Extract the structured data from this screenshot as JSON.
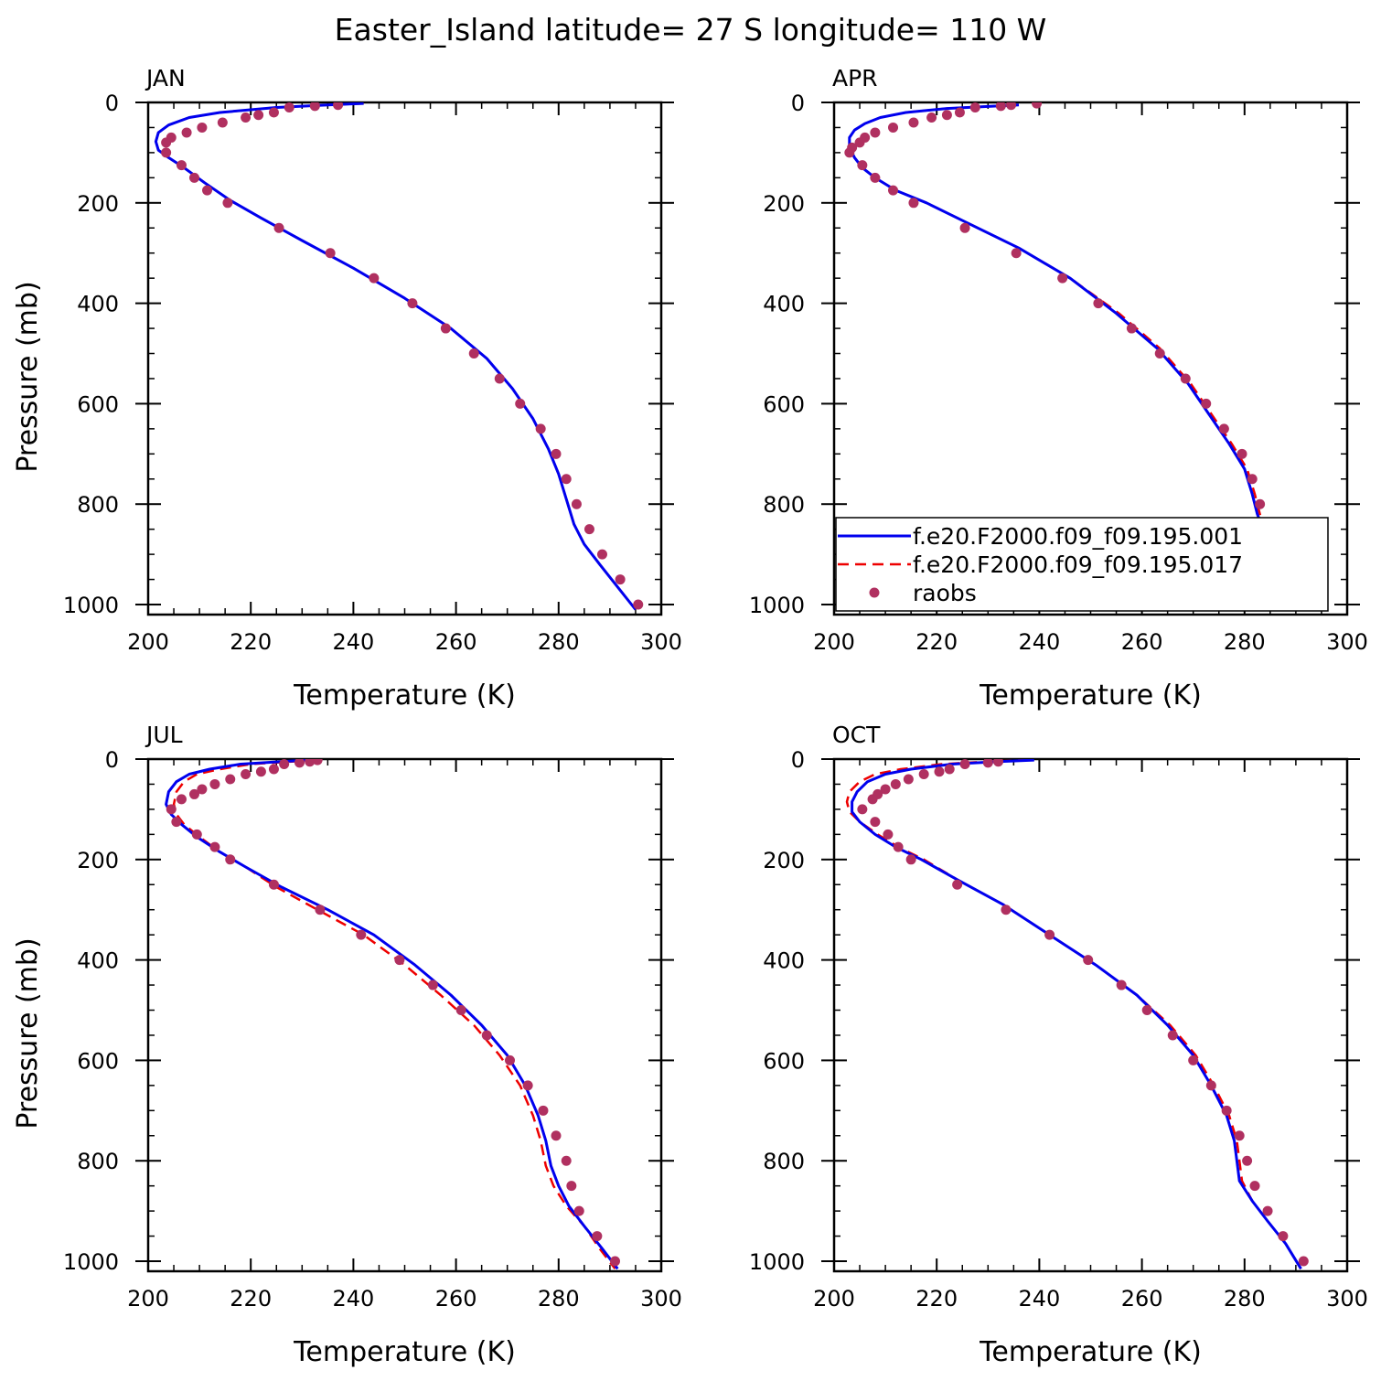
{
  "title": "Easter_Island  latitude= 27 S longitude= 110 W",
  "colors": {
    "series_001": "#0000ee",
    "series_017": "#ee0000",
    "raobs": "#b03060"
  },
  "legend": {
    "placement": "lower-left of APR panel",
    "entries": [
      {
        "label": "f.e20.F2000.f09_f09.195.001",
        "style": "solid-line",
        "color": "#0000ee"
      },
      {
        "label": "f.e20.F2000.f09_f09.195.017",
        "style": "dashed-line",
        "color": "#ee0000"
      },
      {
        "label": "raobs",
        "style": "marker",
        "color": "#b03060"
      }
    ]
  },
  "chart_data": [
    {
      "type": "line",
      "panel": "JAN",
      "xlabel": "Temperature (K)",
      "ylabel": "Pressure (mb)",
      "xlim": [
        200,
        300
      ],
      "ylim": [
        1020,
        0
      ],
      "xticks": [
        200,
        220,
        240,
        260,
        280,
        300
      ],
      "yticks": [
        0,
        200,
        400,
        600,
        800,
        1000
      ],
      "series": [
        {
          "name": "f.e20.F2000.f09_f09.195.001",
          "style": "solid",
          "x": [
            242,
            235,
            225,
            214,
            208,
            204,
            202,
            201.5,
            202,
            204,
            207,
            211,
            216,
            222,
            230,
            240,
            250,
            259,
            266,
            271,
            275,
            278,
            280,
            281.5,
            283,
            285,
            288,
            291.5,
            295
          ],
          "y": [
            2,
            5,
            10,
            20,
            30,
            45,
            60,
            78,
            95,
            110,
            130,
            160,
            195,
            230,
            275,
            330,
            390,
            450,
            510,
            570,
            630,
            690,
            740,
            790,
            840,
            880,
            920,
            965,
            1010
          ]
        },
        {
          "name": "f.e20.F2000.f09_f09.195.017",
          "style": "dashed",
          "x": [
            242,
            235,
            225,
            214,
            208,
            204,
            202,
            201.5,
            202,
            204,
            207,
            211,
            216,
            222,
            230,
            240,
            250,
            259,
            266,
            271,
            275,
            278,
            280,
            281.5,
            283,
            285,
            288,
            291.5,
            295
          ],
          "y": [
            2,
            5,
            10,
            20,
            30,
            45,
            60,
            78,
            95,
            110,
            130,
            160,
            195,
            230,
            275,
            330,
            390,
            450,
            510,
            570,
            630,
            690,
            740,
            790,
            840,
            880,
            920,
            965,
            1010
          ]
        },
        {
          "name": "raobs",
          "style": "marker",
          "x": [
            237,
            232.5,
            227.5,
            224.5,
            221.5,
            219,
            214.5,
            210.5,
            207.5,
            204.5,
            203.5,
            203.5,
            206.5,
            209,
            211.5,
            215.5,
            225.5,
            235.5,
            244,
            251.5,
            258,
            263.5,
            268.5,
            272.5,
            276.5,
            279.5,
            281.5,
            283.5,
            286,
            288.5,
            292,
            295.5
          ],
          "y": [
            5,
            7,
            10,
            20,
            25,
            30,
            40,
            50,
            60,
            70,
            80,
            100,
            125,
            150,
            175,
            200,
            250,
            300,
            350,
            400,
            450,
            500,
            550,
            600,
            650,
            700,
            750,
            800,
            850,
            900,
            950,
            1000
          ]
        }
      ]
    },
    {
      "type": "line",
      "panel": "APR",
      "xlabel": "Temperature (K)",
      "ylabel": "",
      "xlim": [
        200,
        300
      ],
      "ylim": [
        1020,
        0
      ],
      "xticks": [
        200,
        220,
        240,
        260,
        280,
        300
      ],
      "yticks": [
        0,
        200,
        400,
        600,
        800,
        1000
      ],
      "series": [
        {
          "name": "f.e20.F2000.f09_f09.195.001",
          "style": "solid",
          "x": [
            236,
            230,
            222,
            214,
            209,
            206,
            204,
            203,
            203,
            204,
            205.5,
            208,
            212,
            218,
            226,
            236,
            246,
            255,
            263,
            269,
            273,
            277,
            280,
            281.5,
            282.5,
            284,
            287,
            291,
            295
          ],
          "y": [
            5,
            8,
            12,
            20,
            30,
            42,
            55,
            70,
            90,
            110,
            130,
            150,
            175,
            200,
            240,
            290,
            350,
            420,
            490,
            560,
            620,
            680,
            730,
            780,
            820,
            860,
            910,
            960,
            1010
          ]
        },
        {
          "name": "f.e20.F2000.f09_f09.195.017",
          "style": "dashed",
          "x": [
            236,
            230,
            222,
            214,
            209,
            206,
            204,
            203,
            203,
            204,
            205.5,
            208,
            212,
            218,
            226,
            236,
            246,
            255.5,
            263.5,
            269.5,
            273.5,
            277.5,
            280.5,
            282,
            283,
            284.5,
            287.5,
            291,
            295
          ],
          "y": [
            5,
            8,
            12,
            20,
            30,
            42,
            55,
            70,
            90,
            110,
            130,
            150,
            175,
            200,
            240,
            290,
            350,
            420,
            490,
            560,
            620,
            680,
            730,
            780,
            820,
            860,
            910,
            960,
            1010
          ]
        },
        {
          "name": "raobs",
          "style": "marker",
          "x": [
            239.5,
            234.5,
            232.5,
            227.5,
            224.5,
            222,
            219,
            215.5,
            211.5,
            208,
            206,
            205,
            203.5,
            203,
            205.5,
            208,
            211.5,
            215.5,
            225.5,
            235.5,
            244.5,
            251.5,
            258,
            263.5,
            268.5,
            272.5,
            276,
            279.5,
            281.5,
            283,
            285,
            287.5,
            290.5,
            295
          ],
          "y": [
            2,
            5,
            7,
            10,
            20,
            25,
            30,
            40,
            50,
            60,
            70,
            80,
            90,
            100,
            125,
            150,
            175,
            200,
            250,
            300,
            350,
            400,
            450,
            500,
            550,
            600,
            650,
            700,
            750,
            800,
            850,
            900,
            950,
            1000
          ]
        }
      ]
    },
    {
      "type": "line",
      "panel": "JUL",
      "xlabel": "Temperature (K)",
      "ylabel": "Pressure (mb)",
      "xlim": [
        200,
        300
      ],
      "ylim": [
        1020,
        0
      ],
      "xticks": [
        200,
        220,
        240,
        260,
        280,
        300
      ],
      "yticks": [
        0,
        200,
        400,
        600,
        800,
        1000
      ],
      "series": [
        {
          "name": "f.e20.F2000.f09_f09.195.001",
          "style": "solid",
          "x": [
            231,
            226,
            218,
            212,
            208,
            205.5,
            204,
            203.5,
            204.5,
            206.5,
            209.5,
            214,
            219,
            226,
            235,
            244,
            252,
            259,
            265,
            270,
            273.5,
            276,
            277.5,
            278.5,
            280,
            282,
            285,
            288.5,
            291.5
          ],
          "y": [
            2,
            5,
            10,
            20,
            30,
            45,
            65,
            90,
            110,
            130,
            155,
            185,
            215,
            255,
            300,
            350,
            410,
            470,
            530,
            590,
            650,
            710,
            760,
            810,
            850,
            890,
            930,
            975,
            1015
          ]
        },
        {
          "name": "f.e20.F2000.f09_f09.195.017",
          "style": "dashed",
          "x": [
            233,
            228,
            220,
            214,
            209.5,
            207,
            205.5,
            205,
            205.5,
            207,
            210,
            214,
            219,
            225,
            233,
            242,
            250,
            257,
            263.5,
            268.5,
            272.5,
            275,
            276.5,
            277.5,
            279,
            281.5,
            285,
            288,
            291
          ],
          "y": [
            2,
            5,
            10,
            20,
            30,
            45,
            65,
            90,
            110,
            130,
            155,
            185,
            215,
            255,
            300,
            350,
            410,
            470,
            530,
            590,
            650,
            710,
            760,
            810,
            850,
            890,
            930,
            975,
            1015
          ]
        },
        {
          "name": "raobs",
          "style": "marker",
          "x": [
            233,
            231.5,
            229.5,
            226.5,
            224.5,
            222,
            219,
            216,
            213,
            210.5,
            209,
            206.5,
            204.5,
            205.5,
            209.5,
            213,
            216,
            224.5,
            233.5,
            241.5,
            249,
            255.5,
            261,
            266,
            270.5,
            274,
            277,
            279.5,
            281.5,
            282.5,
            284,
            287.5,
            291
          ],
          "y": [
            2,
            5,
            7,
            10,
            20,
            25,
            30,
            40,
            50,
            60,
            70,
            80,
            100,
            125,
            150,
            175,
            200,
            250,
            300,
            350,
            400,
            450,
            500,
            550,
            600,
            650,
            700,
            750,
            800,
            850,
            900,
            950,
            1000
          ]
        }
      ]
    },
    {
      "type": "line",
      "panel": "OCT",
      "xlabel": "Temperature (K)",
      "ylabel": "",
      "xlim": [
        200,
        300
      ],
      "ylim": [
        1020,
        0
      ],
      "xticks": [
        200,
        220,
        240,
        260,
        280,
        300
      ],
      "yticks": [
        0,
        200,
        400,
        600,
        800,
        1000
      ],
      "series": [
        {
          "name": "f.e20.F2000.f09_f09.195.001",
          "style": "solid",
          "x": [
            239,
            232,
            223,
            215,
            210,
            206.5,
            204.5,
            203.5,
            203.5,
            205,
            208,
            212,
            217,
            224,
            233,
            242,
            251,
            259,
            265,
            270,
            273.5,
            276.5,
            278,
            278.5,
            279,
            281.5,
            284.5,
            288,
            291
          ],
          "y": [
            2,
            5,
            10,
            20,
            30,
            45,
            65,
            85,
            105,
            125,
            150,
            175,
            200,
            240,
            290,
            350,
            410,
            470,
            530,
            590,
            650,
            710,
            760,
            800,
            840,
            880,
            920,
            965,
            1015
          ]
        },
        {
          "name": "f.e20.F2000.f09_f09.195.017",
          "style": "dashed",
          "x": [
            238,
            230,
            221,
            213,
            208,
            205,
            203,
            202.5,
            203,
            205,
            208.5,
            212.5,
            217.5,
            224,
            233,
            242,
            251,
            259,
            265.5,
            270.5,
            274,
            277,
            278.5,
            279,
            279.5,
            281.5,
            284.5,
            288,
            291
          ],
          "y": [
            2,
            5,
            10,
            20,
            30,
            45,
            65,
            85,
            105,
            125,
            150,
            175,
            200,
            240,
            290,
            350,
            410,
            470,
            530,
            590,
            650,
            710,
            760,
            800,
            840,
            880,
            920,
            965,
            1015
          ]
        },
        {
          "name": "raobs",
          "style": "marker",
          "x": [
            232,
            230,
            225.5,
            222.5,
            220.5,
            217.5,
            214.5,
            212,
            210,
            208.5,
            207.5,
            205.5,
            208,
            210.5,
            212.5,
            215,
            224,
            233.5,
            242,
            249.5,
            256,
            261,
            266,
            270,
            273.5,
            276.5,
            279,
            280.5,
            282,
            284.5,
            287.5,
            291.5
          ],
          "y": [
            5,
            7,
            10,
            20,
            25,
            30,
            40,
            50,
            60,
            70,
            80,
            100,
            125,
            150,
            175,
            200,
            250,
            300,
            350,
            400,
            450,
            500,
            550,
            600,
            650,
            700,
            750,
            800,
            850,
            900,
            950,
            1000
          ]
        }
      ]
    }
  ]
}
